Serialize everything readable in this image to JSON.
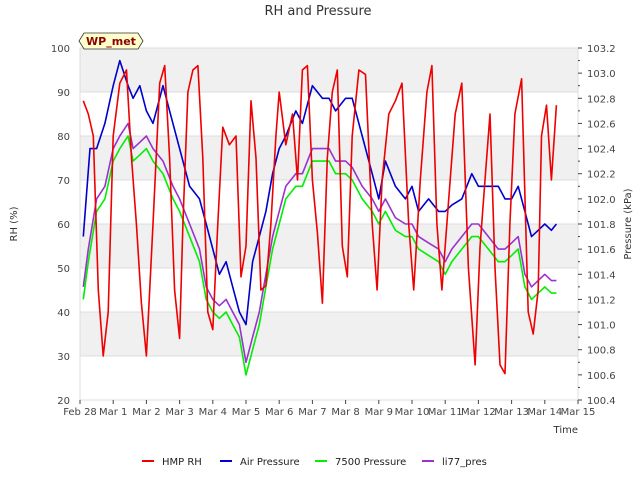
{
  "chart_data": {
    "type": "line",
    "title": "RH and Pressure",
    "xlabel": "Time",
    "ylabel": "RH (%)",
    "y2label": "Pressure (kPa)",
    "badge": "WP_met",
    "ylim": [
      20,
      100
    ],
    "y2lim": [
      100.4,
      103.2
    ],
    "xlim": [
      0,
      15
    ],
    "grid": "horizontal bands",
    "legend_position": "bottom",
    "categories": [
      "Feb 28",
      "Mar 1",
      "Mar 2",
      "Mar 3",
      "Mar 4",
      "Mar 5",
      "Mar 6",
      "Mar 7",
      "Mar 8",
      "Mar 9",
      "Mar 10",
      "Mar 11",
      "Mar 12",
      "Mar 13",
      "Mar 14",
      "Mar 15"
    ],
    "y_ticks": [
      20,
      30,
      40,
      50,
      60,
      70,
      80,
      90,
      100
    ],
    "y2_ticks": [
      "100.4",
      "100.6",
      "100.8",
      "101.0",
      "101.2",
      "101.4",
      "101.6",
      "101.8",
      "102.0",
      "102.2",
      "102.4",
      "102.6",
      "102.8",
      "103.0",
      "103.2"
    ],
    "series": [
      {
        "name": "HMP RH",
        "color": "#ee0000",
        "axis": "left",
        "x": [
          0.1,
          0.25,
          0.4,
          0.55,
          0.7,
          0.85,
          1.0,
          1.2,
          1.4,
          1.55,
          1.7,
          1.85,
          2.0,
          2.2,
          2.4,
          2.55,
          2.7,
          2.85,
          3.0,
          3.1,
          3.25,
          3.4,
          3.55,
          3.7,
          3.85,
          4.0,
          4.15,
          4.3,
          4.5,
          4.7,
          4.85,
          5.0,
          5.15,
          5.3,
          5.45,
          5.6,
          5.75,
          5.9,
          6.0,
          6.2,
          6.4,
          6.55,
          6.7,
          6.85,
          7.0,
          7.15,
          7.3,
          7.45,
          7.6,
          7.75,
          7.9,
          8.05,
          8.2,
          8.4,
          8.6,
          8.8,
          8.95,
          9.1,
          9.3,
          9.5,
          9.7,
          9.9,
          10.05,
          10.25,
          10.45,
          10.6,
          10.75,
          10.9,
          11.1,
          11.3,
          11.5,
          11.7,
          11.9,
          12.05,
          12.2,
          12.35,
          12.5,
          12.65,
          12.8,
          12.95,
          13.1,
          13.3,
          13.5,
          13.65,
          13.8,
          13.9,
          14.05,
          14.2,
          14.35
        ],
        "y": [
          88,
          85,
          80,
          45,
          30,
          40,
          80,
          92,
          95,
          75,
          60,
          42,
          30,
          60,
          92,
          96,
          75,
          45,
          34,
          60,
          90,
          95,
          96,
          75,
          40,
          36,
          60,
          82,
          78,
          80,
          48,
          55,
          88,
          75,
          45,
          46,
          60,
          80,
          90,
          78,
          85,
          70,
          95,
          96,
          70,
          58,
          42,
          75,
          90,
          95,
          55,
          48,
          80,
          95,
          94,
          60,
          45,
          70,
          85,
          88,
          92,
          60,
          45,
          70,
          90,
          96,
          60,
          45,
          65,
          85,
          92,
          50,
          28,
          55,
          70,
          85,
          50,
          28,
          26,
          60,
          85,
          93,
          40,
          35,
          45,
          80,
          87,
          70,
          87
        ],
        "values": [
          88,
          85,
          80,
          45,
          30,
          40,
          80,
          92,
          95,
          75,
          60,
          42,
          30,
          60,
          92,
          96,
          75,
          45,
          34,
          60,
          90,
          95,
          96,
          75,
          40,
          36,
          60,
          82,
          78,
          80,
          48,
          55,
          88,
          75,
          45,
          46,
          60,
          80,
          90,
          78,
          85,
          70,
          95,
          96,
          70,
          58,
          42,
          75,
          90,
          95,
          55,
          48,
          80,
          95,
          94,
          60,
          45,
          70,
          85,
          88,
          92,
          60,
          45,
          70,
          90,
          96,
          60,
          45,
          65,
          85,
          92,
          50,
          28,
          55,
          70,
          85,
          50,
          28,
          26,
          60,
          85,
          93,
          40,
          35,
          45,
          80,
          87,
          70,
          87
        ]
      },
      {
        "name": "Air Pressure",
        "color": "#0000cc",
        "axis": "right",
        "x": [
          0.1,
          0.3,
          0.5,
          0.75,
          1.0,
          1.2,
          1.45,
          1.6,
          1.8,
          2.0,
          2.2,
          2.5,
          2.7,
          3.0,
          3.3,
          3.6,
          3.8,
          4.0,
          4.2,
          4.4,
          4.6,
          4.8,
          5.0,
          5.2,
          5.4,
          5.6,
          5.8,
          6.0,
          6.2,
          6.5,
          6.7,
          7.0,
          7.3,
          7.5,
          7.7,
          8.0,
          8.2,
          8.5,
          8.8,
          9.0,
          9.2,
          9.5,
          9.8,
          10.0,
          10.2,
          10.5,
          10.8,
          11.0,
          11.2,
          11.5,
          11.8,
          12.0,
          12.3,
          12.6,
          12.8,
          13.0,
          13.2,
          13.4,
          13.6,
          13.8,
          14.0,
          14.2,
          14.35
        ],
        "y": [
          101.7,
          102.4,
          102.4,
          102.6,
          102.9,
          103.1,
          102.9,
          102.8,
          102.9,
          102.7,
          102.6,
          102.9,
          102.7,
          102.4,
          102.1,
          102.0,
          101.8,
          101.6,
          101.4,
          101.5,
          101.3,
          101.1,
          101.0,
          101.5,
          101.7,
          101.9,
          102.2,
          102.4,
          102.5,
          102.7,
          102.6,
          102.9,
          102.8,
          102.8,
          102.7,
          102.8,
          102.8,
          102.5,
          102.2,
          102.0,
          102.3,
          102.1,
          102.0,
          102.1,
          101.9,
          102.0,
          101.9,
          101.9,
          101.95,
          102.0,
          102.2,
          102.1,
          102.1,
          102.1,
          102.0,
          102.0,
          102.1,
          101.9,
          101.7,
          101.75,
          101.8,
          101.75,
          101.8
        ],
        "values": [
          101.7,
          102.4,
          102.4,
          102.6,
          102.9,
          103.1,
          102.9,
          102.8,
          102.9,
          102.7,
          102.6,
          102.9,
          102.7,
          102.4,
          102.1,
          102.0,
          101.8,
          101.6,
          101.4,
          101.5,
          101.3,
          101.1,
          101.0,
          101.5,
          101.7,
          101.9,
          102.2,
          102.4,
          102.5,
          102.7,
          102.6,
          102.9,
          102.8,
          102.8,
          102.7,
          102.8,
          102.8,
          102.5,
          102.2,
          102.0,
          102.3,
          102.1,
          102.0,
          102.1,
          101.9,
          102.0,
          101.9,
          101.9,
          101.95,
          102.0,
          102.2,
          102.1,
          102.1,
          102.1,
          102.0,
          102.0,
          102.1,
          101.9,
          101.7,
          101.75,
          101.8,
          101.75,
          101.8
        ]
      },
      {
        "name": "7500 Pressure",
        "color": "#00ee00",
        "axis": "right",
        "x": [
          0.1,
          0.25,
          0.5,
          0.75,
          1.0,
          1.2,
          1.45,
          1.6,
          1.8,
          2.0,
          2.2,
          2.5,
          2.8,
          3.0,
          3.3,
          3.6,
          3.8,
          4.0,
          4.2,
          4.4,
          4.6,
          4.8,
          5.0,
          5.2,
          5.4,
          5.6,
          5.8,
          6.0,
          6.2,
          6.5,
          6.7,
          7.0,
          7.3,
          7.5,
          7.7,
          8.0,
          8.2,
          8.5,
          8.8,
          9.0,
          9.2,
          9.5,
          9.8,
          10.0,
          10.2,
          10.5,
          10.8,
          11.0,
          11.2,
          11.5,
          11.8,
          12.0,
          12.3,
          12.6,
          12.8,
          13.0,
          13.2,
          13.4,
          13.6,
          13.8,
          14.0,
          14.2,
          14.35
        ],
        "y": [
          101.2,
          101.5,
          101.9,
          102.0,
          102.3,
          102.4,
          102.5,
          102.3,
          102.35,
          102.4,
          102.3,
          102.2,
          102.0,
          101.9,
          101.7,
          101.5,
          101.2,
          101.1,
          101.05,
          101.1,
          101.0,
          100.9,
          100.6,
          100.8,
          101.0,
          101.3,
          101.6,
          101.8,
          102.0,
          102.1,
          102.1,
          102.3,
          102.3,
          102.3,
          102.2,
          102.2,
          102.15,
          102.0,
          101.9,
          101.8,
          101.9,
          101.75,
          101.7,
          101.7,
          101.6,
          101.55,
          101.5,
          101.4,
          101.5,
          101.6,
          101.7,
          101.7,
          101.6,
          101.5,
          101.5,
          101.55,
          101.6,
          101.3,
          101.2,
          101.25,
          101.3,
          101.25,
          101.25
        ],
        "values": [
          101.2,
          101.5,
          101.9,
          102.0,
          102.3,
          102.4,
          102.5,
          102.3,
          102.35,
          102.4,
          102.3,
          102.2,
          102.0,
          101.9,
          101.7,
          101.5,
          101.2,
          101.1,
          101.05,
          101.1,
          101.0,
          100.9,
          100.6,
          100.8,
          101.0,
          101.3,
          101.6,
          101.8,
          102.0,
          102.1,
          102.1,
          102.3,
          102.3,
          102.3,
          102.2,
          102.2,
          102.15,
          102.0,
          101.9,
          101.8,
          101.9,
          101.75,
          101.7,
          101.7,
          101.6,
          101.55,
          101.5,
          101.4,
          101.5,
          101.6,
          101.7,
          101.7,
          101.6,
          101.5,
          101.5,
          101.55,
          101.6,
          101.3,
          101.2,
          101.25,
          101.3,
          101.25,
          101.25
        ]
      },
      {
        "name": "li77_pres",
        "color": "#9933cc",
        "axis": "right",
        "x": [
          0.1,
          0.25,
          0.5,
          0.75,
          1.0,
          1.2,
          1.45,
          1.6,
          1.8,
          2.0,
          2.2,
          2.5,
          2.8,
          3.0,
          3.3,
          3.6,
          3.8,
          4.0,
          4.2,
          4.4,
          4.6,
          4.8,
          5.0,
          5.2,
          5.4,
          5.6,
          5.8,
          6.0,
          6.2,
          6.5,
          6.7,
          7.0,
          7.3,
          7.5,
          7.7,
          8.0,
          8.2,
          8.5,
          8.8,
          9.0,
          9.2,
          9.5,
          9.8,
          10.0,
          10.2,
          10.5,
          10.8,
          11.0,
          11.2,
          11.5,
          11.8,
          12.0,
          12.3,
          12.6,
          12.8,
          13.0,
          13.2,
          13.4,
          13.6,
          13.8,
          14.0,
          14.2,
          14.35
        ],
        "y": [
          101.3,
          101.6,
          102.0,
          102.1,
          102.4,
          102.5,
          102.6,
          102.4,
          102.45,
          102.5,
          102.4,
          102.3,
          102.1,
          102.0,
          101.8,
          101.6,
          101.3,
          101.2,
          101.15,
          101.2,
          101.1,
          101.0,
          100.7,
          100.9,
          101.1,
          101.4,
          101.7,
          101.9,
          102.1,
          102.2,
          102.2,
          102.4,
          102.4,
          102.4,
          102.3,
          102.3,
          102.25,
          102.1,
          102.0,
          101.9,
          102.0,
          101.85,
          101.8,
          101.8,
          101.7,
          101.65,
          101.6,
          101.5,
          101.6,
          101.7,
          101.8,
          101.8,
          101.7,
          101.6,
          101.6,
          101.65,
          101.7,
          101.4,
          101.3,
          101.35,
          101.4,
          101.35,
          101.35
        ],
        "values": [
          101.3,
          101.6,
          102.0,
          102.1,
          102.4,
          102.5,
          102.6,
          102.4,
          102.45,
          102.5,
          102.4,
          102.3,
          102.1,
          102.0,
          101.8,
          101.6,
          101.3,
          101.2,
          101.15,
          101.2,
          101.1,
          101.0,
          100.7,
          100.9,
          101.1,
          101.4,
          101.7,
          101.9,
          102.1,
          102.2,
          102.2,
          102.4,
          102.4,
          102.4,
          102.3,
          102.3,
          102.25,
          102.1,
          102.0,
          101.9,
          102.0,
          101.85,
          101.8,
          101.8,
          101.7,
          101.65,
          101.6,
          101.5,
          101.6,
          101.7,
          101.8,
          101.8,
          101.7,
          101.6,
          101.6,
          101.65,
          101.7,
          101.4,
          101.3,
          101.35,
          101.4,
          101.35,
          101.35
        ]
      }
    ]
  }
}
